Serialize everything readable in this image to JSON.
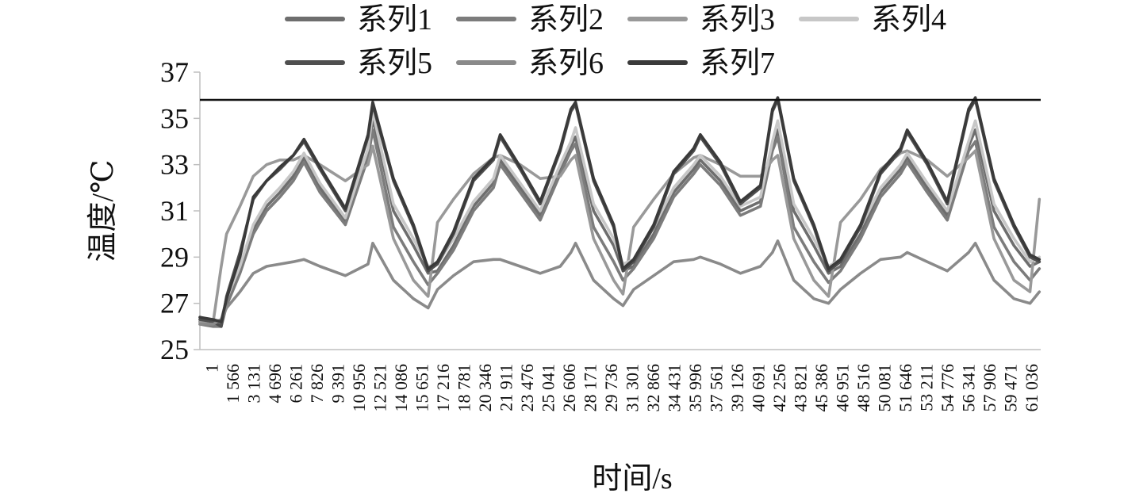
{
  "chart_data": {
    "type": "line",
    "xlabel": "时间/s",
    "ylabel": "温度/℃",
    "ylim": [
      25,
      37
    ],
    "yticks": [
      25,
      27,
      29,
      31,
      33,
      35,
      37
    ],
    "xlim": [
      1,
      63000
    ],
    "legend_position": "top",
    "grid": false,
    "reference_line": {
      "y": 35.8,
      "color": "#111111"
    },
    "xtick_labels": [
      "1",
      "1 566",
      "3 131",
      "4 696",
      "6 261",
      "7 826",
      "9 391",
      "10 956",
      "12 521",
      "14 086",
      "15 651",
      "17 216",
      "18 781",
      "20 346",
      "21 911",
      "23 476",
      "25 041",
      "26 606",
      "28 171",
      "29 736",
      "31 301",
      "32 866",
      "34 431",
      "35 996",
      "37 561",
      "39 126",
      "40 691",
      "42 256",
      "43 821",
      "45 386",
      "46 951",
      "48 516",
      "50 081",
      "51 646",
      "53 211",
      "54 776",
      "56 341",
      "57 906",
      "59 471",
      "61 036"
    ],
    "x": [
      1,
      1000,
      1600,
      2000,
      3000,
      4000,
      5000,
      6000,
      7000,
      7800,
      9000,
      10900,
      12600,
      12950,
      14500,
      16000,
      17100,
      17800,
      19000,
      20500,
      22000,
      22500,
      24000,
      25500,
      27000,
      27800,
      28150,
      29500,
      31000,
      31700,
      32500,
      34000,
      35500,
      37000,
      37500,
      39000,
      40500,
      42000,
      42900,
      43300,
      44500,
      46000,
      47100,
      48000,
      49500,
      51000,
      52500,
      53000,
      54500,
      56000,
      57600,
      58100,
      59500,
      61000,
      62200,
      62900
    ],
    "series": [
      {
        "name": "系列1",
        "color": "#6e6e6e",
        "values": [
          26.2,
          26.1,
          26.1,
          27.0,
          28.5,
          30.2,
          31.2,
          31.8,
          32.5,
          33.3,
          32.0,
          30.5,
          33.5,
          35.0,
          31.0,
          29.5,
          28.3,
          28.4,
          29.5,
          31.2,
          32.2,
          33.2,
          32.0,
          30.8,
          32.8,
          33.8,
          34.2,
          31.0,
          29.5,
          28.4,
          28.6,
          30.0,
          31.8,
          32.8,
          33.2,
          32.3,
          31.0,
          31.4,
          33.8,
          34.5,
          31.0,
          29.5,
          28.3,
          28.6,
          30.0,
          31.8,
          32.8,
          33.3,
          32.0,
          30.8,
          33.8,
          34.5,
          31.0,
          29.5,
          28.6,
          28.8
        ]
      },
      {
        "name": "系列2",
        "color": "#7c7c7c",
        "values": [
          26.1,
          26.0,
          26.0,
          26.9,
          28.3,
          30.0,
          31.0,
          31.6,
          32.3,
          33.1,
          31.8,
          30.4,
          33.3,
          34.5,
          30.3,
          28.8,
          27.8,
          28.3,
          29.3,
          31.0,
          32.0,
          33.0,
          31.8,
          30.6,
          32.6,
          33.6,
          33.9,
          30.3,
          28.8,
          28.0,
          28.5,
          29.8,
          31.6,
          32.6,
          33.0,
          32.1,
          30.8,
          31.2,
          33.6,
          34.2,
          30.3,
          28.8,
          27.9,
          28.4,
          29.8,
          31.6,
          32.6,
          33.1,
          31.8,
          30.6,
          33.6,
          34.0,
          30.3,
          28.8,
          28.0,
          28.5
        ]
      },
      {
        "name": "系列3",
        "color": "#999999",
        "values": [
          26.2,
          26.2,
          28.6,
          30.0,
          31.2,
          32.5,
          33.0,
          33.2,
          33.2,
          33.4,
          33.0,
          32.3,
          33.0,
          33.8,
          29.8,
          28.0,
          27.3,
          30.5,
          31.5,
          32.6,
          33.3,
          33.4,
          33.0,
          32.4,
          32.5,
          33.2,
          33.4,
          29.8,
          28.0,
          27.4,
          30.3,
          31.5,
          32.6,
          33.3,
          33.4,
          33.0,
          32.5,
          32.5,
          33.2,
          33.4,
          29.8,
          28.0,
          27.3,
          30.5,
          31.5,
          32.8,
          33.5,
          33.6,
          33.2,
          32.5,
          33.3,
          33.6,
          29.8,
          28.0,
          27.5,
          31.5
        ]
      },
      {
        "name": "系列4",
        "color": "#c7c7c7",
        "values": [
          26.3,
          26.2,
          26.3,
          27.2,
          28.6,
          30.4,
          31.4,
          32.0,
          32.7,
          33.5,
          32.2,
          30.7,
          33.7,
          35.3,
          31.3,
          29.8,
          28.6,
          28.7,
          29.8,
          31.4,
          32.4,
          33.4,
          32.2,
          31.0,
          33.0,
          34.0,
          34.6,
          31.3,
          29.8,
          28.7,
          28.9,
          30.3,
          32.0,
          33.0,
          33.4,
          32.5,
          31.2,
          31.6,
          34.0,
          34.9,
          31.3,
          29.8,
          28.6,
          28.9,
          30.3,
          32.0,
          33.0,
          33.5,
          32.2,
          31.0,
          34.0,
          34.9,
          31.3,
          29.8,
          28.8,
          29.0
        ]
      },
      {
        "name": "系列5",
        "color": "#4f4f4f",
        "values": [
          26.3,
          26.2,
          26.0,
          27.3,
          29.2,
          31.5,
          32.3,
          32.8,
          33.4,
          34.0,
          32.8,
          31.0,
          34.2,
          35.6,
          32.3,
          30.3,
          28.4,
          28.7,
          30.0,
          32.3,
          33.2,
          34.2,
          32.8,
          31.3,
          33.6,
          35.3,
          35.6,
          32.3,
          30.3,
          28.4,
          28.8,
          30.3,
          32.6,
          33.6,
          34.2,
          33.0,
          31.3,
          32.0,
          35.3,
          35.8,
          32.3,
          30.3,
          28.4,
          28.8,
          30.3,
          32.6,
          33.6,
          34.4,
          33.0,
          31.3,
          35.3,
          35.8,
          32.3,
          30.3,
          29.0,
          28.8
        ]
      },
      {
        "name": "系列6",
        "color": "#8a8a8a",
        "values": [
          26.1,
          26.1,
          26.3,
          26.8,
          27.5,
          28.3,
          28.6,
          28.7,
          28.8,
          28.9,
          28.6,
          28.2,
          28.7,
          29.6,
          28.0,
          27.2,
          26.8,
          27.6,
          28.2,
          28.8,
          28.9,
          28.9,
          28.6,
          28.3,
          28.6,
          29.2,
          29.6,
          28.0,
          27.2,
          26.9,
          27.6,
          28.2,
          28.8,
          28.9,
          29.0,
          28.7,
          28.3,
          28.6,
          29.2,
          29.7,
          28.0,
          27.2,
          27.0,
          27.6,
          28.3,
          28.9,
          29.0,
          29.2,
          28.8,
          28.4,
          29.2,
          29.6,
          28.0,
          27.2,
          27.0,
          27.5
        ]
      },
      {
        "name": "系列7",
        "color": "#3a3a3a",
        "values": [
          26.4,
          26.3,
          26.2,
          27.2,
          29.0,
          31.6,
          32.3,
          32.9,
          33.4,
          34.1,
          32.9,
          31.1,
          34.3,
          35.7,
          32.4,
          30.4,
          28.5,
          28.8,
          30.1,
          32.4,
          33.3,
          34.3,
          32.9,
          31.4,
          33.7,
          35.4,
          35.7,
          32.4,
          30.4,
          28.5,
          28.9,
          30.4,
          32.7,
          33.7,
          34.3,
          33.1,
          31.4,
          32.1,
          35.4,
          35.9,
          32.4,
          30.4,
          28.5,
          28.9,
          30.4,
          32.7,
          33.7,
          34.5,
          33.1,
          31.4,
          35.4,
          35.9,
          32.4,
          30.4,
          29.1,
          28.9
        ]
      }
    ]
  }
}
